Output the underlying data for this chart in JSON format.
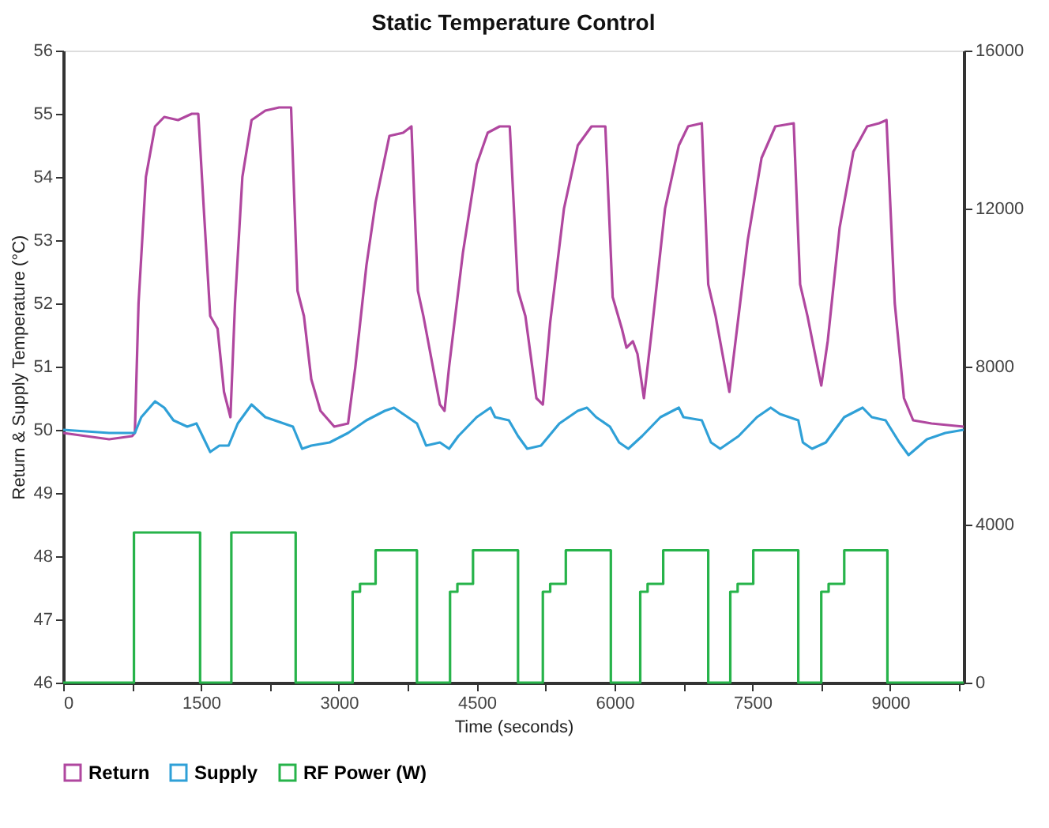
{
  "chart_data": {
    "type": "line",
    "title": "Static Temperature Control",
    "xlabel": "Time (seconds)",
    "ylabel": "Return & Supply Temperature (°C)",
    "xlim": [
      0,
      9800
    ],
    "xticks": [
      0,
      {
        "value": 750,
        "label": null
      },
      1500,
      {
        "value": 2250,
        "label": null
      },
      3000,
      {
        "value": 3750,
        "label": null
      },
      4500,
      {
        "value": 5250,
        "label": null
      },
      6000,
      {
        "value": 6750,
        "label": null
      },
      7500,
      {
        "value": 8250,
        "label": null
      },
      9000,
      {
        "value": 9750,
        "label": null
      }
    ],
    "ylim": [
      46,
      56
    ],
    "yticks": [
      46,
      47,
      48,
      49,
      50,
      51,
      52,
      53,
      54,
      55,
      56
    ],
    "y2lim": [
      0,
      16000
    ],
    "y2ticks": [
      0,
      4000,
      8000,
      12000,
      16000
    ],
    "grid": false,
    "legend": "bottom",
    "line_style": "solid",
    "marker": "none",
    "series": [
      {
        "name": "Return",
        "color": "#b0479f",
        "x": [
          0,
          500,
          750,
          780,
          820,
          900,
          1000,
          1100,
          1250,
          1400,
          1470,
          1530,
          1600,
          1680,
          1750,
          1820,
          1870,
          1950,
          2050,
          2200,
          2350,
          2480,
          2550,
          2620,
          2700,
          2800,
          2950,
          3100,
          3180,
          3300,
          3400,
          3550,
          3700,
          3790,
          3860,
          3920,
          4100,
          4150,
          4200,
          4350,
          4500,
          4620,
          4750,
          4860,
          4950,
          5030,
          5150,
          5220,
          5300,
          5450,
          5600,
          5750,
          5900,
          5980,
          6080,
          6130,
          6200,
          6250,
          6320,
          6400,
          6550,
          6700,
          6800,
          6950,
          7020,
          7100,
          7250,
          7300,
          7450,
          7600,
          7750,
          7950,
          8020,
          8100,
          8250,
          8320,
          8450,
          8600,
          8750,
          8880,
          8960,
          9050,
          9150,
          9250,
          9450,
          9800
        ],
        "values": [
          49.95,
          49.85,
          49.9,
          49.95,
          52,
          54,
          54.8,
          54.95,
          54.9,
          55,
          55,
          53.5,
          51.8,
          51.6,
          50.6,
          50.2,
          52,
          54,
          54.9,
          55.05,
          55.1,
          55.1,
          52.2,
          51.8,
          50.8,
          50.3,
          50.05,
          50.1,
          51,
          52.6,
          53.6,
          54.65,
          54.7,
          54.8,
          52.2,
          51.8,
          50.4,
          50.3,
          51,
          52.8,
          54.2,
          54.7,
          54.8,
          54.8,
          52.2,
          51.8,
          50.5,
          50.4,
          51.7,
          53.5,
          54.5,
          54.8,
          54.8,
          52.1,
          51.6,
          51.3,
          51.4,
          51.2,
          50.5,
          51.5,
          53.5,
          54.5,
          54.8,
          54.85,
          52.3,
          51.8,
          50.6,
          51.2,
          53,
          54.3,
          54.8,
          54.85,
          52.3,
          51.8,
          50.7,
          51.4,
          53.2,
          54.4,
          54.8,
          54.85,
          54.9,
          52,
          50.5,
          50.15,
          50.1,
          50.05
        ]
      },
      {
        "name": "Supply",
        "color": "#2fa0d7",
        "x": [
          0,
          500,
          780,
          850,
          1000,
          1100,
          1200,
          1350,
          1450,
          1550,
          1600,
          1700,
          1800,
          1900,
          2050,
          2200,
          2400,
          2500,
          2600,
          2700,
          2900,
          3100,
          3300,
          3500,
          3600,
          3750,
          3850,
          3950,
          4100,
          4200,
          4300,
          4500,
          4650,
          4700,
          4850,
          4950,
          5050,
          5200,
          5400,
          5600,
          5700,
          5800,
          5950,
          6050,
          6150,
          6300,
          6500,
          6700,
          6750,
          6950,
          7050,
          7150,
          7350,
          7550,
          7700,
          7800,
          8000,
          8050,
          8150,
          8300,
          8500,
          8700,
          8800,
          8950,
          9100,
          9200,
          9400,
          9600,
          9800
        ],
        "values": [
          50,
          49.95,
          49.95,
          50.2,
          50.45,
          50.35,
          50.15,
          50.05,
          50.1,
          49.8,
          49.65,
          49.75,
          49.75,
          50.1,
          50.4,
          50.2,
          50.1,
          50.05,
          49.7,
          49.75,
          49.8,
          49.95,
          50.15,
          50.3,
          50.35,
          50.2,
          50.1,
          49.75,
          49.8,
          49.7,
          49.9,
          50.2,
          50.35,
          50.2,
          50.15,
          49.9,
          49.7,
          49.75,
          50.1,
          50.3,
          50.35,
          50.2,
          50.05,
          49.8,
          49.7,
          49.9,
          50.2,
          50.35,
          50.2,
          50.15,
          49.8,
          49.7,
          49.9,
          50.2,
          50.35,
          50.25,
          50.15,
          49.8,
          49.7,
          49.8,
          50.2,
          50.35,
          50.2,
          50.15,
          49.8,
          49.6,
          49.85,
          49.95,
          50
        ]
      },
      {
        "name": "RF Power (W)",
        "color": "#27b34a",
        "type": "step",
        "axis": "y2",
        "x": [
          0,
          770,
          1490,
          1830,
          2530,
          3150,
          3230,
          3400,
          3850,
          4210,
          4290,
          4460,
          4950,
          5220,
          5300,
          5470,
          5960,
          6280,
          6360,
          6530,
          7020,
          7260,
          7340,
          7510,
          8000,
          8250,
          8330,
          8500,
          8970,
          9800
        ],
        "values": [
          0,
          3800,
          0,
          3800,
          0,
          2300,
          2500,
          3350,
          0,
          2300,
          2500,
          3350,
          0,
          2300,
          2500,
          3350,
          0,
          2300,
          2500,
          3350,
          0,
          2300,
          2500,
          3350,
          0,
          2300,
          2500,
          3350,
          0,
          0
        ]
      }
    ]
  }
}
